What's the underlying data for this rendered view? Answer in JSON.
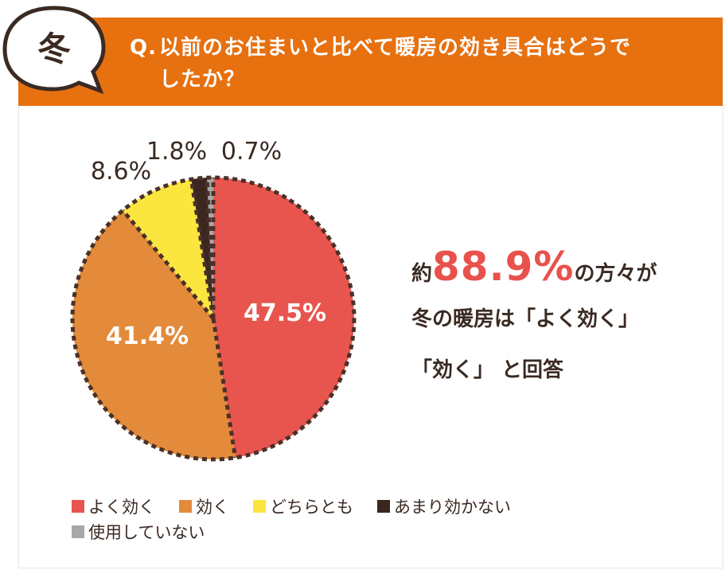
{
  "season": "冬",
  "question": {
    "prefix": "Q.",
    "line1": "以前のお住まいと比べて暖房の効き具合はどうで",
    "line2": "したか？"
  },
  "callout": {
    "pre": "約",
    "value": "88.9%",
    "post": "の方々が",
    "line2": "冬の暖房は「よく効く」",
    "line3": "「効く」 と回答"
  },
  "chart_data": {
    "type": "pie",
    "title": "以前のお住まいと比べて暖房の効き具合はどうでしたか？",
    "slices": [
      {
        "label": "よく効く",
        "value": 47.5,
        "display": "47.5%",
        "color": "#e8554e"
      },
      {
        "label": "効く",
        "value": 41.4,
        "display": "41.4%",
        "color": "#e38b3b"
      },
      {
        "label": "どちらとも",
        "value": 8.6,
        "display": "8.6%",
        "color": "#fbe63f"
      },
      {
        "label": "あまり効かない",
        "value": 1.8,
        "display": "1.8%",
        "color": "#3b2720"
      },
      {
        "label": "使用していない",
        "value": 0.7,
        "display": "0.7%",
        "color": "#a8a8a8"
      }
    ],
    "legend_position": "bottom-left"
  },
  "legend": {
    "row1": [
      0,
      1,
      2,
      3
    ],
    "row2": [
      4
    ]
  },
  "colors": {
    "header": "#e7700f",
    "accent": "#e8514c",
    "dash": "#4a3128"
  }
}
